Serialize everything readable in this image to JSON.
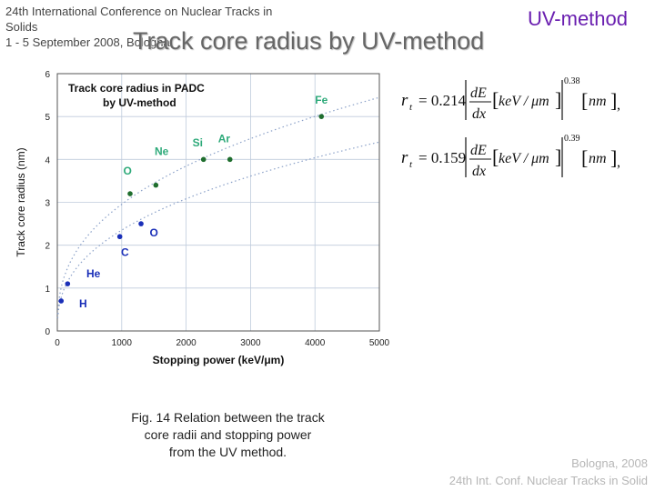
{
  "conference": {
    "line1": "24th International Conference on Nuclear Tracks in",
    "line2": "Solids",
    "line3": " 1 - 5 September 2008, Bologna"
  },
  "method_tag": "UV-method",
  "slide_title": "Track core radius by UV-method",
  "equations": [
    {
      "lhs": "r",
      "sub": "t",
      "coefficient": "= 0.214",
      "numerator": "dE",
      "denominator": "dx",
      "unit": "keV / μm",
      "exponent": "0.38",
      "result_unit": "nm",
      "trail": ","
    },
    {
      "lhs": "r",
      "sub": "t",
      "coefficient": "= 0.159",
      "numerator": "dE",
      "denominator": "dx",
      "unit": "keV / μm",
      "exponent": "0.39",
      "result_unit": "nm",
      "trail": ","
    }
  ],
  "caption": {
    "line1": "Fig. 14 Relation between the track",
    "line2": "core radii and stopping power",
    "line3": "from the UV method."
  },
  "footer": {
    "line1": "Bologna,  2008",
    "line2": "24th Int. Conf. Nuclear Tracks in Solid"
  },
  "chart_data": {
    "type": "scatter",
    "title": "Track core radius in PADC by UV-method",
    "xlabel": "Stopping power (keV/μm)",
    "ylabel": "Track core radius (nm)",
    "xlim": [
      0,
      5000
    ],
    "ylim": [
      0,
      6
    ],
    "xticks": [
      0,
      1000,
      2000,
      3000,
      4000,
      5000
    ],
    "yticks": [
      0,
      1,
      2,
      3,
      4,
      5,
      6
    ],
    "grid": true,
    "marker_color": "#1a2fb8",
    "points": [
      {
        "x": 60,
        "y": 0.7
      },
      {
        "x": 160,
        "y": 1.1
      },
      {
        "x": 970,
        "y": 2.2
      },
      {
        "x": 1300,
        "y": 2.5
      },
      {
        "x": 1130,
        "y": 3.2
      },
      {
        "x": 1530,
        "y": 3.4
      },
      {
        "x": 2270,
        "y": 4.0
      },
      {
        "x": 2680,
        "y": 4.0
      },
      {
        "x": 4100,
        "y": 5.0
      }
    ],
    "point_labels": [
      {
        "text": "H",
        "x": 400,
        "y": 0.55,
        "color": "#1a2fb8"
      },
      {
        "text": "He",
        "x": 560,
        "y": 1.25,
        "color": "#1a2fb8"
      },
      {
        "text": "C",
        "x": 1050,
        "y": 1.75,
        "color": "#1a2fb8"
      },
      {
        "text": "O",
        "x": 1500,
        "y": 2.2,
        "color": "#1a2fb8"
      },
      {
        "text": "O",
        "x": 1090,
        "y": 3.65,
        "color": "#2eaa7a"
      },
      {
        "text": "Ne",
        "x": 1620,
        "y": 4.1,
        "color": "#2eaa7a"
      },
      {
        "text": "Si",
        "x": 2180,
        "y": 4.3,
        "color": "#2eaa7a"
      },
      {
        "text": "Ar",
        "x": 2590,
        "y": 4.4,
        "color": "#2eaa7a"
      },
      {
        "text": "Fe",
        "x": 4100,
        "y": 5.3,
        "color": "#2eaa7a"
      }
    ],
    "fit_curves": [
      {
        "coefficient": 0.214,
        "exponent": 0.38
      },
      {
        "coefficient": 0.159,
        "exponent": 0.39
      }
    ]
  }
}
